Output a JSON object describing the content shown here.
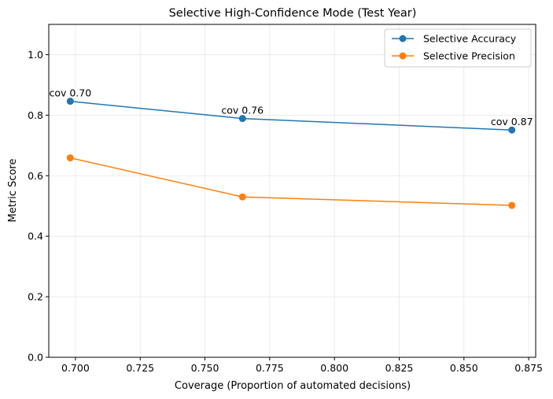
{
  "chart_data": {
    "type": "line",
    "title": "Selective High-Confidence Mode (Test Year)",
    "xlabel": "Coverage (Proportion of automated decisions)",
    "ylabel": "Metric Score",
    "xlim": [
      0.6897,
      0.8777
    ],
    "ylim": [
      0.0,
      1.1
    ],
    "xticks": [
      0.7,
      0.725,
      0.75,
      0.775,
      0.8,
      0.825,
      0.85,
      0.875
    ],
    "xtick_labels": [
      "0.700",
      "0.725",
      "0.750",
      "0.775",
      "0.800",
      "0.825",
      "0.850",
      "0.875"
    ],
    "yticks": [
      0.0,
      0.2,
      0.4,
      0.6,
      0.8,
      1.0
    ],
    "ytick_labels": [
      "0.0",
      "0.2",
      "0.4",
      "0.6",
      "0.8",
      "1.0"
    ],
    "grid": true,
    "legend_position": "top-right",
    "x": [
      0.698,
      0.7645,
      0.8685
    ],
    "series": [
      {
        "name": "Selective Accuracy",
        "color": "#1f77b4",
        "values": [
          0.846,
          0.789,
          0.751
        ]
      },
      {
        "name": "Selective Precision",
        "color": "#ff7f0e",
        "values": [
          0.659,
          0.53,
          0.502
        ]
      }
    ],
    "annotations": [
      {
        "text": "cov 0.70",
        "x": 0.698,
        "y": 0.846
      },
      {
        "text": "cov 0.76",
        "x": 0.7645,
        "y": 0.789
      },
      {
        "text": "cov 0.87",
        "x": 0.8685,
        "y": 0.751
      }
    ]
  }
}
